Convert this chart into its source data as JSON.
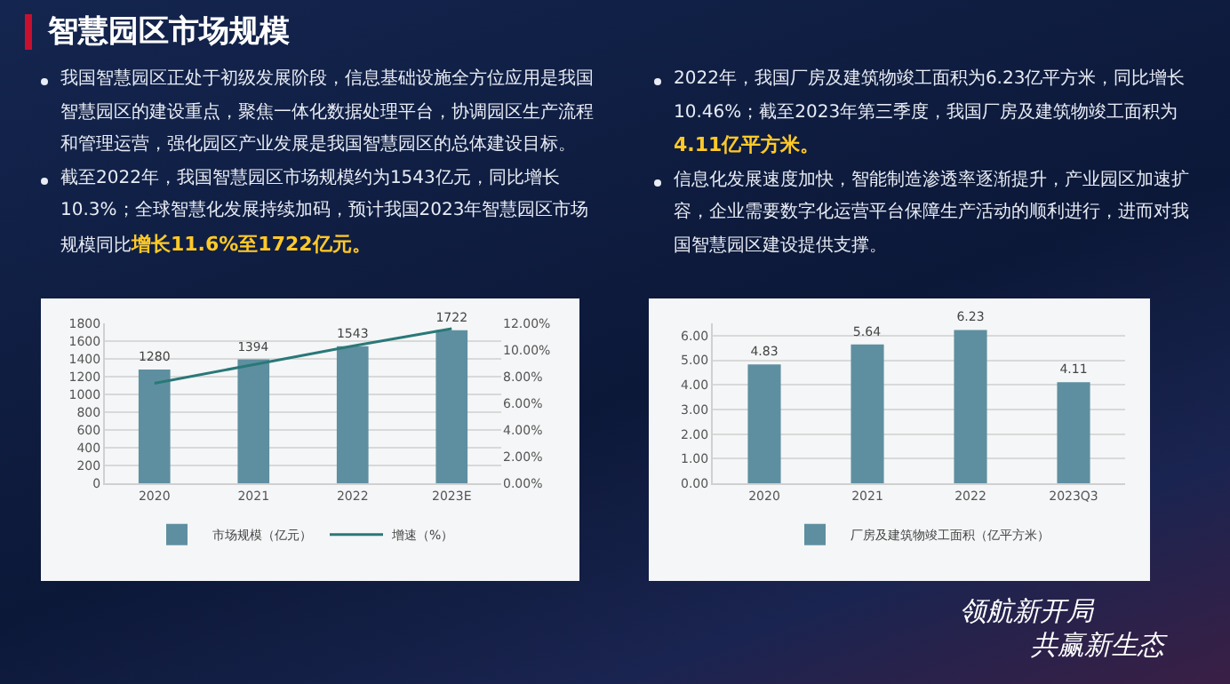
{
  "chart_data": [
    {
      "type": "bar",
      "title": "智慧园区市场规模",
      "categories": [
        "2020",
        "2021",
        "2022",
        "2023E"
      ],
      "series": [
        {
          "name": "市场规模（亿元）",
          "color": "#5e8fa0",
          "values": [
            1280,
            1394,
            1543,
            1722
          ],
          "value_labels": [
            "1280",
            "1394",
            "1543",
            "1722"
          ]
        },
        {
          "name": "增速（%）",
          "type": "line",
          "color": "#2a7878",
          "axis": "y2",
          "values": [
            7.5,
            8.9,
            10.3,
            11.6
          ]
        }
      ],
      "ylim": [
        0,
        1800
      ],
      "yticks": [
        0,
        200,
        400,
        600,
        800,
        1000,
        1200,
        1400,
        1600,
        1800
      ],
      "y2lim": [
        0,
        12
      ],
      "y2ticks": [
        {
          "value": 0,
          "label": "0.00%"
        },
        {
          "value": 2,
          "label": "2.00%"
        },
        {
          "value": 4,
          "label": "4.00%"
        },
        {
          "value": 6,
          "label": "6.00%"
        },
        {
          "value": 8,
          "label": "8.00%"
        },
        {
          "value": 10,
          "label": "10.00%"
        },
        {
          "value": 12,
          "label": "12.00%"
        }
      ],
      "grid": "y",
      "legend": "bottom",
      "annotations": [
        "我国智慧园区正处于初级发展阶段，信息基础设施全方位应用是我国智慧园区的建设重点，聚焦一体化数据处理平台，协调园区生产流程和管理运营，强化园区产业发展是我国智慧园区的总体建设目标。",
        "截至2022年，我国智慧园区市场规模约为1543亿元，同比增长10.3%；全球智慧化发展持续加码，预计我国2023年智慧园区市场规模同比",
        "增长11.6%至1722亿元。"
      ]
    },
    {
      "type": "bar",
      "categories": [
        "2020",
        "2021",
        "2022",
        "2023Q3"
      ],
      "series": [
        {
          "name": "厂房及建筑物竣工面积（亿平方米）",
          "color": "#5e8fa0",
          "values": [
            4.83,
            5.64,
            6.23,
            4.11
          ],
          "value_labels": [
            "4.83",
            "5.64",
            "6.23",
            "4.11"
          ]
        }
      ],
      "ylim": [
        0,
        6.5
      ],
      "yticks": [
        {
          "value": 0,
          "label": "0.00"
        },
        {
          "value": 1,
          "label": "1.00"
        },
        {
          "value": 2,
          "label": "2.00"
        },
        {
          "value": 3,
          "label": "3.00"
        },
        {
          "value": 4,
          "label": "4.00"
        },
        {
          "value": 5,
          "label": "5.00"
        },
        {
          "value": 6,
          "label": "6.00"
        }
      ],
      "grid": "y",
      "legend": "bottom",
      "annotations": [
        "2022年，我国厂房及建筑物竣工面积为6.23亿平方米，同比增长10.46%；截至2023年第三季度，我国厂房及建筑物竣工面积为",
        "4.11亿平方米。",
        "信息化发展速度加快，智能制造渗透率逐渐提升，产业园区加速扩容，企业需要数字化运营平台保障生产活动的顺利进行，进而对我国智慧园区建设提供支撑。",
        "领航新开局",
        "共赢新生态"
      ]
    }
  ]
}
